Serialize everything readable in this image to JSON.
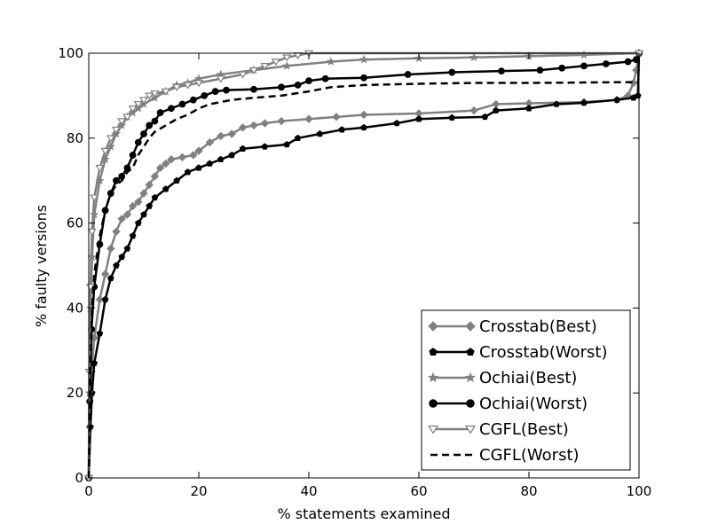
{
  "chart_data": {
    "type": "line",
    "title": "",
    "xlabel": "%  statements examined",
    "ylabel": "% faulty versions",
    "xlim": [
      0,
      100
    ],
    "ylim": [
      0,
      100
    ],
    "xticks": [
      "0",
      "20",
      "40",
      "60",
      "80",
      "100"
    ],
    "yticks": [
      "0",
      "20",
      "40",
      "60",
      "80",
      "100"
    ],
    "grid": false,
    "legend_position": "bottom-right",
    "series": [
      {
        "name": "Crosstab(Best)",
        "color": "#808080",
        "line_style": "solid",
        "marker": "diamond",
        "points": [
          [
            0,
            0
          ],
          [
            0.2,
            12
          ],
          [
            0.5,
            25
          ],
          [
            1,
            33
          ],
          [
            2,
            42
          ],
          [
            3,
            48
          ],
          [
            4,
            54
          ],
          [
            5,
            58
          ],
          [
            6,
            61
          ],
          [
            7,
            62
          ],
          [
            8,
            64
          ],
          [
            9,
            65
          ],
          [
            10,
            67
          ],
          [
            11,
            69
          ],
          [
            12,
            71
          ],
          [
            13,
            73
          ],
          [
            14,
            74
          ],
          [
            15,
            75
          ],
          [
            17,
            75.5
          ],
          [
            19,
            76
          ],
          [
            20,
            77
          ],
          [
            22,
            79
          ],
          [
            24,
            80.5
          ],
          [
            26,
            81
          ],
          [
            28,
            82.5
          ],
          [
            30,
            83
          ],
          [
            32,
            83.5
          ],
          [
            35,
            84
          ],
          [
            40,
            84.5
          ],
          [
            45,
            85
          ],
          [
            50,
            85.5
          ],
          [
            60,
            85.8
          ],
          [
            70,
            86.5
          ],
          [
            74,
            88
          ],
          [
            80,
            88.2
          ],
          [
            90,
            88.5
          ],
          [
            96,
            89
          ],
          [
            98,
            90
          ],
          [
            99,
            93
          ],
          [
            99.5,
            96
          ],
          [
            100,
            100
          ]
        ]
      },
      {
        "name": "Crosstab(Worst)",
        "color": "#000000",
        "line_style": "solid",
        "marker": "pentagon",
        "points": [
          [
            0,
            0
          ],
          [
            0.3,
            12
          ],
          [
            0.6,
            20
          ],
          [
            1,
            27
          ],
          [
            2,
            34
          ],
          [
            3,
            42
          ],
          [
            4,
            47
          ],
          [
            5,
            50
          ],
          [
            6,
            52
          ],
          [
            7,
            54
          ],
          [
            8,
            57
          ],
          [
            9,
            60
          ],
          [
            10,
            62
          ],
          [
            11,
            64
          ],
          [
            12,
            66
          ],
          [
            14,
            68
          ],
          [
            16,
            70
          ],
          [
            18,
            72
          ],
          [
            20,
            73
          ],
          [
            22,
            74
          ],
          [
            24,
            75
          ],
          [
            26,
            76
          ],
          [
            28,
            77.5
          ],
          [
            32,
            78
          ],
          [
            36,
            78.5
          ],
          [
            38,
            80
          ],
          [
            42,
            81
          ],
          [
            46,
            82
          ],
          [
            50,
            82.5
          ],
          [
            56,
            83.5
          ],
          [
            60,
            84.5
          ],
          [
            66,
            84.8
          ],
          [
            72,
            85
          ],
          [
            74,
            86.5
          ],
          [
            80,
            87
          ],
          [
            85,
            88
          ],
          [
            90,
            88.3
          ],
          [
            96,
            89
          ],
          [
            99,
            89.5
          ],
          [
            99.8,
            90
          ],
          [
            100,
            100
          ]
        ]
      },
      {
        "name": "Ochiai(Best)",
        "color": "#808080",
        "line_style": "solid",
        "marker": "star",
        "points": [
          [
            0,
            0
          ],
          [
            0.1,
            20
          ],
          [
            0.3,
            40
          ],
          [
            0.6,
            52
          ],
          [
            1,
            62
          ],
          [
            2,
            70
          ],
          [
            3,
            75
          ],
          [
            4,
            78
          ],
          [
            5,
            81
          ],
          [
            6,
            83
          ],
          [
            7,
            85
          ],
          [
            8,
            86
          ],
          [
            9,
            87
          ],
          [
            10,
            88
          ],
          [
            12,
            89.5
          ],
          [
            14,
            91
          ],
          [
            16,
            92.5
          ],
          [
            18,
            93
          ],
          [
            20,
            94
          ],
          [
            24,
            95
          ],
          [
            30,
            96
          ],
          [
            36,
            97
          ],
          [
            44,
            98
          ],
          [
            50,
            98.5
          ],
          [
            60,
            98.8
          ],
          [
            70,
            99
          ],
          [
            80,
            99.3
          ],
          [
            90,
            99.6
          ],
          [
            100,
            100
          ]
        ]
      },
      {
        "name": "Ochiai(Worst)",
        "color": "#000000",
        "line_style": "solid",
        "marker": "circle",
        "points": [
          [
            0,
            0
          ],
          [
            0.2,
            18
          ],
          [
            0.5,
            35
          ],
          [
            1,
            45
          ],
          [
            2,
            55
          ],
          [
            3,
            63
          ],
          [
            4,
            67
          ],
          [
            5,
            70
          ],
          [
            6,
            71
          ],
          [
            7,
            73
          ],
          [
            8,
            76
          ],
          [
            9,
            79
          ],
          [
            10,
            81
          ],
          [
            11,
            83
          ],
          [
            12,
            84
          ],
          [
            13,
            86
          ],
          [
            15,
            87
          ],
          [
            17,
            88
          ],
          [
            19,
            89
          ],
          [
            21,
            90
          ],
          [
            23,
            91
          ],
          [
            25,
            91.3
          ],
          [
            30,
            91.5
          ],
          [
            35,
            92
          ],
          [
            38,
            92.5
          ],
          [
            40,
            93.5
          ],
          [
            43,
            94
          ],
          [
            50,
            94.2
          ],
          [
            58,
            95
          ],
          [
            66,
            95.5
          ],
          [
            75,
            95.8
          ],
          [
            82,
            96
          ],
          [
            86,
            96.5
          ],
          [
            90,
            97
          ],
          [
            94,
            97.5
          ],
          [
            98,
            98
          ],
          [
            99.5,
            98.5
          ],
          [
            100,
            100
          ]
        ]
      },
      {
        "name": "CGFL(Best)",
        "color": "#808080",
        "line_style": "solid",
        "marker": "triangle-down",
        "points": [
          [
            0,
            0
          ],
          [
            0.1,
            25
          ],
          [
            0.3,
            45
          ],
          [
            0.6,
            58
          ],
          [
            1,
            66
          ],
          [
            2,
            73
          ],
          [
            3,
            77
          ],
          [
            4,
            80
          ],
          [
            5,
            82
          ],
          [
            6,
            84
          ],
          [
            7,
            85
          ],
          [
            8,
            87
          ],
          [
            9,
            88
          ],
          [
            10,
            89
          ],
          [
            11,
            90
          ],
          [
            12,
            90.5
          ],
          [
            14,
            91
          ],
          [
            16,
            92
          ],
          [
            18,
            92.5
          ],
          [
            20,
            93
          ],
          [
            24,
            94
          ],
          [
            28,
            95
          ],
          [
            30,
            96
          ],
          [
            32,
            97
          ],
          [
            34,
            98
          ],
          [
            36,
            99
          ],
          [
            38,
            99.5
          ],
          [
            40,
            100
          ],
          [
            100,
            100
          ]
        ]
      },
      {
        "name": "CGFL(Worst)",
        "color": "#000000",
        "line_style": "dashed",
        "marker": "none",
        "points": [
          [
            0,
            0
          ],
          [
            0.3,
            25
          ],
          [
            0.6,
            40
          ],
          [
            1,
            48
          ],
          [
            2,
            57
          ],
          [
            3,
            63
          ],
          [
            4,
            67
          ],
          [
            5,
            69
          ],
          [
            6,
            70
          ],
          [
            7,
            72
          ],
          [
            8,
            73
          ],
          [
            9,
            76
          ],
          [
            10,
            78
          ],
          [
            11,
            80
          ],
          [
            12,
            81.5
          ],
          [
            14,
            83
          ],
          [
            16,
            84.5
          ],
          [
            18,
            85.5
          ],
          [
            20,
            87
          ],
          [
            22,
            88
          ],
          [
            26,
            89
          ],
          [
            30,
            89.5
          ],
          [
            35,
            90
          ],
          [
            40,
            91
          ],
          [
            44,
            92
          ],
          [
            50,
            92.5
          ],
          [
            60,
            92.8
          ],
          [
            70,
            93
          ],
          [
            80,
            93
          ],
          [
            90,
            93.1
          ],
          [
            100,
            93.2
          ]
        ]
      }
    ]
  }
}
